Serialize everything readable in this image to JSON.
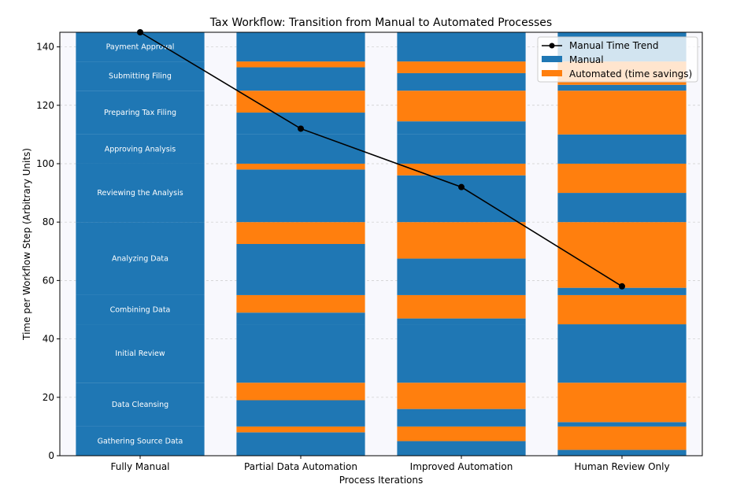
{
  "chart_data": {
    "type": "bar",
    "stacked": true,
    "title": "Tax Workflow: Transition from Manual to Automated Processes",
    "xlabel": "Process Iterations",
    "ylabel": "Time per Workflow Step (Arbitrary Units)",
    "ylim": [
      0,
      145
    ],
    "yticks": [
      0,
      20,
      40,
      60,
      80,
      100,
      120,
      140
    ],
    "grid": "horizontal dashed",
    "legend_position": "top-right",
    "categories": [
      "Fully Manual",
      "Partial Data Automation",
      "Improved Automation",
      "Human Review Only"
    ],
    "steps": [
      "Gathering Source Data",
      "Data Cleansing",
      "Initial Review",
      "Combining Data",
      "Analyzing Data",
      "Reviewing the Analysis",
      "Approving Analysis",
      "Preparing Tax Filing",
      "Submitting Filing",
      "Payment Approval"
    ],
    "manual": [
      [
        10,
        15,
        20,
        10,
        25,
        20,
        10,
        15,
        10,
        10
      ],
      [
        8,
        9,
        20,
        4,
        17.5,
        18,
        10,
        7.5,
        8,
        10
      ],
      [
        5,
        6,
        20,
        2,
        12.5,
        16,
        10,
        4.5,
        6,
        10
      ],
      [
        2,
        1.5,
        20,
        0,
        2.5,
        10,
        10,
        0,
        2,
        10
      ]
    ],
    "automated": [
      [
        0,
        0,
        0,
        0,
        0,
        0,
        0,
        0,
        0,
        0
      ],
      [
        2,
        6,
        0,
        6,
        7.5,
        2,
        0,
        7.5,
        2,
        0
      ],
      [
        5,
        9,
        0,
        8,
        12.5,
        4,
        0,
        10.5,
        4,
        0
      ],
      [
        8,
        13.5,
        0,
        10,
        22.5,
        10,
        0,
        15,
        8,
        0
      ]
    ],
    "trend": {
      "name": "Manual Time Trend",
      "values": [
        145,
        112,
        92,
        58
      ]
    },
    "legend": [
      "Manual Time Trend",
      "Manual",
      "Automated (time savings)"
    ],
    "colors": {
      "manual": "#1f77b4",
      "automated": "#ff7f0e",
      "trend": "#000000",
      "background": "#f8f8fd"
    }
  }
}
